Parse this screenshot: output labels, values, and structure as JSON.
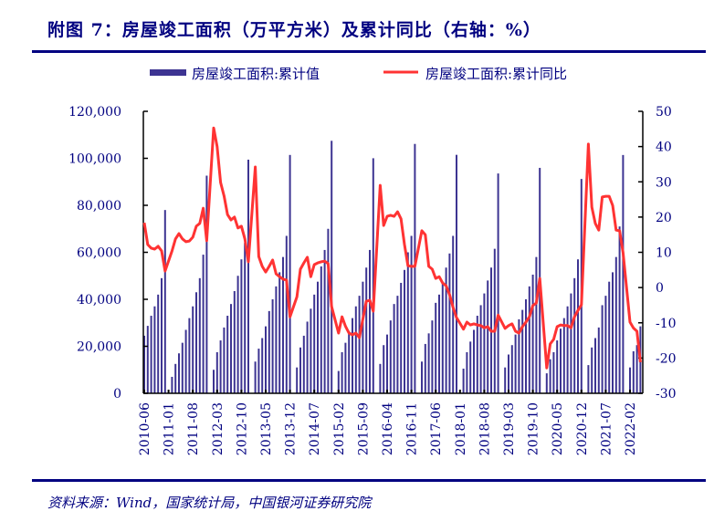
{
  "title": "附图 7：房屋竣工面积（万平方米）及累计同比（右轴：%）",
  "source": "资料来源：Wind，国家统计局，中国银河证券研究院",
  "colors": {
    "bar": "#3d3492",
    "line": "#ff3333",
    "text": "#000080"
  },
  "chart_data": {
    "type": "bar+line",
    "legend_placement": "top",
    "grid": false,
    "series": [
      {
        "name": "房屋竣工面积:累计值",
        "type": "bar",
        "axis": "left"
      },
      {
        "name": "房屋竣工面积:累计同比",
        "type": "line",
        "axis": "right"
      }
    ],
    "left_axis": {
      "ylim": [
        0,
        120000
      ],
      "ticks": [
        "0",
        "20,000",
        "40,000",
        "60,000",
        "80,000",
        "100,000",
        "120,000"
      ]
    },
    "right_axis": {
      "ylim": [
        -30,
        50
      ],
      "ticks": [
        "-30",
        "-20",
        "-10",
        "0",
        "10",
        "20",
        "30",
        "40",
        "50"
      ]
    },
    "x_range": [
      "2010-06",
      "2022-05"
    ],
    "x_ticks": [
      "2010-06",
      "2011-01",
      "2011-08",
      "2012-03",
      "2012-10",
      "2013-05",
      "2013-12",
      "2014-07",
      "2015-02",
      "2015-09",
      "2016-04",
      "2016-11",
      "2017-06",
      "2018-01",
      "2018-08",
      "2019-03",
      "2019-10",
      "2020-05",
      "2020-12",
      "2021-07",
      "2022-02"
    ],
    "points_columns": [
      "month",
      "累计值",
      "累计同比"
    ],
    "points": [
      [
        "2010-06",
        24500,
        18.4
      ],
      [
        "2010-07",
        28700,
        12.2
      ],
      [
        "2010-08",
        33000,
        11.2
      ],
      [
        "2010-09",
        37000,
        10.9
      ],
      [
        "2010-10",
        42000,
        11.7
      ],
      [
        "2010-11",
        49000,
        10.4
      ],
      [
        "2010-12",
        78000,
        4.7
      ],
      [
        "2011-02",
        7000,
        10.4
      ],
      [
        "2011-03",
        12500,
        13.8
      ],
      [
        "2011-04",
        17000,
        15.3
      ],
      [
        "2011-05",
        21500,
        13.8
      ],
      [
        "2011-06",
        27000,
        13.0
      ],
      [
        "2011-07",
        32000,
        13.2
      ],
      [
        "2011-08",
        37000,
        14.3
      ],
      [
        "2011-09",
        43000,
        17.4
      ],
      [
        "2011-10",
        49000,
        18.2
      ],
      [
        "2011-11",
        59000,
        22.5
      ],
      [
        "2011-12",
        92620,
        13.3
      ],
      [
        "2012-02",
        10000,
        45.3
      ],
      [
        "2012-03",
        17500,
        40.0
      ],
      [
        "2012-04",
        22500,
        29.8
      ],
      [
        "2012-05",
        28000,
        26.0
      ],
      [
        "2012-06",
        33000,
        20.7
      ],
      [
        "2012-07",
        38000,
        19.2
      ],
      [
        "2012-08",
        43500,
        20.0
      ],
      [
        "2012-09",
        50000,
        16.9
      ],
      [
        "2012-10",
        57000,
        17.4
      ],
      [
        "2012-11",
        64000,
        13.8
      ],
      [
        "2012-12",
        99425,
        7.3
      ],
      [
        "2013-02",
        13500,
        34.2
      ],
      [
        "2013-03",
        19000,
        8.8
      ],
      [
        "2013-04",
        23500,
        6.0
      ],
      [
        "2013-05",
        28500,
        4.4
      ],
      [
        "2013-06",
        35000,
        6.0
      ],
      [
        "2013-07",
        40000,
        7.8
      ],
      [
        "2013-08",
        45500,
        3.9
      ],
      [
        "2013-09",
        51500,
        3.1
      ],
      [
        "2013-10",
        58000,
        2.4
      ],
      [
        "2013-11",
        67000,
        2.1
      ],
      [
        "2013-12",
        101435,
        -8.3
      ],
      [
        "2014-02",
        11000,
        -2.6
      ],
      [
        "2014-03",
        19500,
        5.2
      ],
      [
        "2014-04",
        24500,
        7.0
      ],
      [
        "2014-05",
        30500,
        8.6
      ],
      [
        "2014-06",
        36000,
        3.1
      ],
      [
        "2014-07",
        42000,
        6.5
      ],
      [
        "2014-08",
        47500,
        7.0
      ],
      [
        "2014-09",
        54000,
        7.3
      ],
      [
        "2014-10",
        61000,
        7.5
      ],
      [
        "2014-11",
        70000,
        6.8
      ],
      [
        "2014-12",
        107459,
        -5.4
      ],
      [
        "2015-02",
        9500,
        -12.9
      ],
      [
        "2015-03",
        17500,
        -8.3
      ],
      [
        "2015-04",
        21500,
        -11.0
      ],
      [
        "2015-05",
        26500,
        -12.9
      ],
      [
        "2015-06",
        32000,
        -13.4
      ],
      [
        "2015-07",
        37000,
        -12.9
      ],
      [
        "2015-08",
        41500,
        -14.2
      ],
      [
        "2015-09",
        47500,
        -9.0
      ],
      [
        "2015-10",
        53500,
        -3.9
      ],
      [
        "2015-11",
        61000,
        -3.6
      ],
      [
        "2015-12",
        100039,
        -6.7
      ],
      [
        "2016-02",
        12500,
        29.0
      ],
      [
        "2016-03",
        20500,
        17.6
      ],
      [
        "2016-04",
        25000,
        20.2
      ],
      [
        "2016-05",
        31000,
        20.5
      ],
      [
        "2016-06",
        38000,
        20.2
      ],
      [
        "2016-07",
        41500,
        21.5
      ],
      [
        "2016-08",
        47000,
        19.5
      ],
      [
        "2016-09",
        52500,
        12.2
      ],
      [
        "2016-10",
        60000,
        6.2
      ],
      [
        "2016-11",
        67000,
        6.0
      ],
      [
        "2016-12",
        106128,
        6.0
      ],
      [
        "2017-02",
        13500,
        16.1
      ],
      [
        "2017-03",
        21000,
        15.0
      ],
      [
        "2017-04",
        25500,
        6.0
      ],
      [
        "2017-05",
        31000,
        5.2
      ],
      [
        "2017-06",
        38500,
        2.6
      ],
      [
        "2017-07",
        42000,
        3.1
      ],
      [
        "2017-08",
        47500,
        1.3
      ],
      [
        "2017-09",
        53500,
        0.5
      ],
      [
        "2017-10",
        59500,
        -2.0
      ],
      [
        "2017-11",
        67000,
        -5.6
      ],
      [
        "2017-12",
        101486,
        -8.5
      ],
      [
        "2018-02",
        10500,
        -11.8
      ],
      [
        "2018-03",
        17500,
        -9.8
      ],
      [
        "2018-04",
        22000,
        -10.6
      ],
      [
        "2018-05",
        27000,
        -10.3
      ],
      [
        "2018-06",
        33000,
        -10.6
      ],
      [
        "2018-07",
        37500,
        -10.8
      ],
      [
        "2018-08",
        42500,
        -11.4
      ],
      [
        "2018-09",
        48000,
        -11.1
      ],
      [
        "2018-10",
        53500,
        -12.4
      ],
      [
        "2018-11",
        61500,
        -12.4
      ],
      [
        "2018-12",
        93550,
        -7.8
      ],
      [
        "2019-02",
        11000,
        -11.6
      ],
      [
        "2019-03",
        16500,
        -10.8
      ],
      [
        "2019-04",
        20500,
        -10.3
      ],
      [
        "2019-05",
        25000,
        -12.4
      ],
      [
        "2019-06",
        31500,
        -12.9
      ],
      [
        "2019-07",
        35500,
        -11.1
      ],
      [
        "2019-08",
        40000,
        -9.8
      ],
      [
        "2019-09",
        45500,
        -8.3
      ],
      [
        "2019-10",
        50500,
        -5.1
      ],
      [
        "2019-11",
        58000,
        -4.4
      ],
      [
        "2019-12",
        95942,
        2.6
      ],
      [
        "2020-02",
        8500,
        -22.8
      ],
      [
        "2020-03",
        14500,
        -16.0
      ],
      [
        "2020-04",
        17500,
        -14.7
      ],
      [
        "2020-05",
        22500,
        -11.1
      ],
      [
        "2020-06",
        27500,
        -10.6
      ],
      [
        "2020-07",
        32000,
        -10.8
      ],
      [
        "2020-08",
        37000,
        -10.8
      ],
      [
        "2020-09",
        42500,
        -11.4
      ],
      [
        "2020-10",
        49000,
        -8.3
      ],
      [
        "2020-11",
        57000,
        -6.5
      ],
      [
        "2020-12",
        91218,
        -4.9
      ],
      [
        "2021-02",
        12000,
        40.7
      ],
      [
        "2021-03",
        19500,
        22.8
      ],
      [
        "2021-04",
        23500,
        18.2
      ],
      [
        "2021-05",
        28000,
        16.3
      ],
      [
        "2021-06",
        37500,
        25.7
      ],
      [
        "2021-07",
        41500,
        25.9
      ],
      [
        "2021-08",
        47500,
        25.9
      ],
      [
        "2021-09",
        51500,
        23.3
      ],
      [
        "2021-10",
        58000,
        16.3
      ],
      [
        "2021-11",
        71000,
        16.1
      ],
      [
        "2021-12",
        101412,
        9.9
      ],
      [
        "2022-02",
        11000,
        -9.8
      ],
      [
        "2022-03",
        17900,
        -11.5
      ],
      [
        "2022-04",
        20500,
        -12.4
      ],
      [
        "2022-05",
        28500,
        -21.2
      ]
    ]
  }
}
